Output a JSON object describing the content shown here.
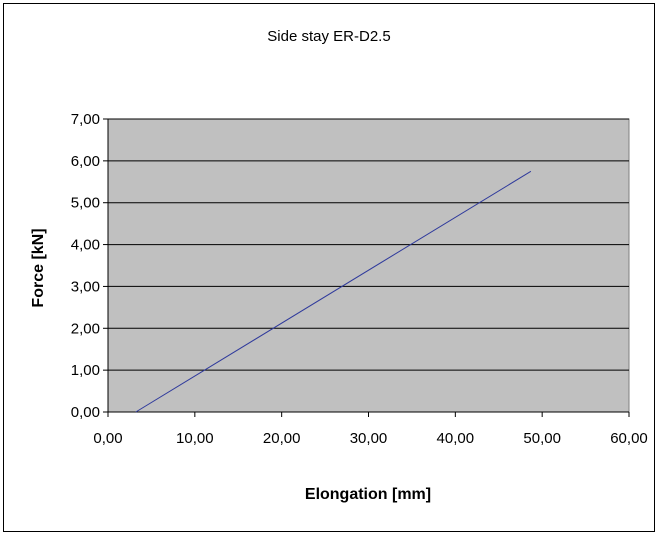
{
  "chart_data": {
    "type": "line",
    "title": "Side stay ER-D2.5",
    "xlabel": "Elongation [mm]",
    "ylabel": "Force [kN]",
    "xlim": [
      0,
      60
    ],
    "ylim": [
      0,
      7
    ],
    "x_ticks": [
      "0,00",
      "10,00",
      "20,00",
      "30,00",
      "40,00",
      "50,00",
      "60,00"
    ],
    "y_ticks": [
      "0,00",
      "1,00",
      "2,00",
      "3,00",
      "4,00",
      "5,00",
      "6,00",
      "7,00"
    ],
    "grid": "horizontal",
    "legend": "none",
    "colors": {
      "plot_background": "#c0c0c0",
      "series_line": "#2f3a9c",
      "frame": "#000000"
    },
    "series": [
      {
        "x": [
          3.2,
          48.7
        ],
        "y": [
          0.0,
          5.75
        ]
      }
    ]
  }
}
